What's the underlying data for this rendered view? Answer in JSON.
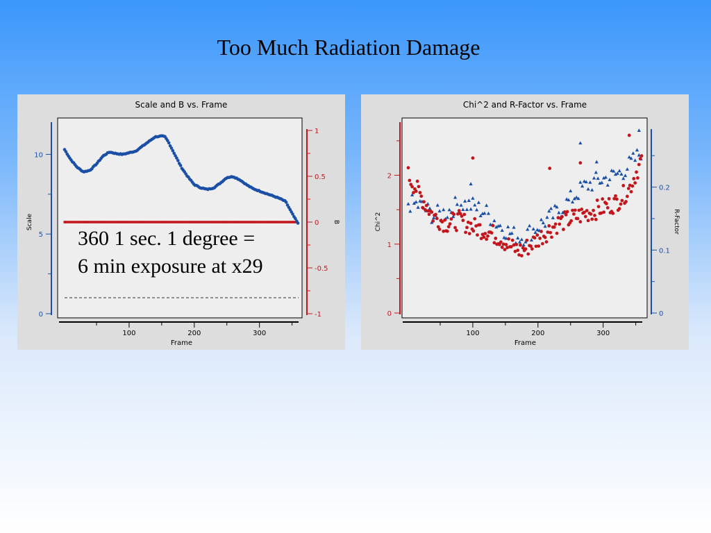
{
  "slide": {
    "title": "Too Much Radiation Damage"
  },
  "left_panel": {
    "note_line1": "360 1 sec. 1 degree =",
    "note_line2": "6 min exposure at x29"
  },
  "colors": {
    "blue": "#1a4fa6",
    "red": "#c3161c",
    "axis_blue": "#1a4fa6",
    "axis_red": "#c3161c",
    "panel_bg": "#dddddd",
    "plot_bg": "#eeeeee"
  },
  "chart_data": [
    {
      "type": "line",
      "title": "Scale and B vs. Frame",
      "xlabel": "Frame",
      "ylabel_left": "Scale",
      "ylabel_right": "B",
      "xlim": [
        1,
        360
      ],
      "ylim_left": [
        0,
        11.5
      ],
      "ylim_right": [
        -1,
        1
      ],
      "x_ticks": [
        100,
        200,
        300
      ],
      "y_ticks_left": [
        0,
        5,
        10
      ],
      "y_ticks_right": [
        -1,
        -0.5,
        0,
        0.5,
        1
      ],
      "y_tick_labels_right": [
        "-1",
        "-0.5",
        "0",
        "0.5",
        "1"
      ],
      "series": [
        {
          "name": "Scale",
          "axis": "left",
          "color": "#1a4fa6",
          "points": [
            [
              1,
              10.3
            ],
            [
              10,
              9.7
            ],
            [
              20,
              9.2
            ],
            [
              30,
              8.9
            ],
            [
              40,
              9.0
            ],
            [
              50,
              9.4
            ],
            [
              60,
              9.9
            ],
            [
              70,
              10.15
            ],
            [
              80,
              10.05
            ],
            [
              90,
              10.0
            ],
            [
              100,
              10.1
            ],
            [
              110,
              10.2
            ],
            [
              120,
              10.5
            ],
            [
              130,
              10.8
            ],
            [
              140,
              11.1
            ],
            [
              150,
              11.15
            ],
            [
              155,
              11.1
            ],
            [
              160,
              10.8
            ],
            [
              170,
              10.0
            ],
            [
              180,
              9.2
            ],
            [
              190,
              8.6
            ],
            [
              200,
              8.1
            ],
            [
              210,
              7.9
            ],
            [
              220,
              7.8
            ],
            [
              230,
              7.9
            ],
            [
              240,
              8.2
            ],
            [
              250,
              8.55
            ],
            [
              260,
              8.6
            ],
            [
              270,
              8.4
            ],
            [
              280,
              8.1
            ],
            [
              290,
              7.85
            ],
            [
              300,
              7.7
            ],
            [
              310,
              7.55
            ],
            [
              320,
              7.4
            ],
            [
              330,
              7.25
            ],
            [
              340,
              7.05
            ],
            [
              350,
              6.3
            ],
            [
              360,
              5.6
            ]
          ]
        },
        {
          "name": "B",
          "axis": "right",
          "color": "#c3161c",
          "constant": 0
        }
      ],
      "reference_line": 1.0
    },
    {
      "type": "scatter",
      "title": "Chi^2 and R-Factor vs. Frame",
      "xlabel": "Frame",
      "ylabel_left": "Chi^2",
      "ylabel_right": "R-Factor",
      "xlim": [
        1,
        360
      ],
      "ylim_left": [
        0,
        2.65
      ],
      "ylim_right": [
        0,
        0.29
      ],
      "x_ticks": [
        100,
        200,
        300
      ],
      "y_ticks_left": [
        0,
        1,
        2
      ],
      "y_ticks_right": [
        0,
        0.1,
        0.2
      ],
      "y_tick_labels_right": [
        "0",
        "0.1",
        "0.2"
      ],
      "series": [
        {
          "name": "Chi^2",
          "axis": "left",
          "marker": "circle",
          "color": "#c3161c",
          "trend": [
            [
              1,
              2.0
            ],
            [
              20,
              1.7
            ],
            [
              40,
              1.4
            ],
            [
              60,
              1.3
            ],
            [
              80,
              1.35
            ],
            [
              100,
              1.25
            ],
            [
              120,
              1.2
            ],
            [
              140,
              1.1
            ],
            [
              160,
              0.95
            ],
            [
              175,
              0.9
            ],
            [
              190,
              1.0
            ],
            [
              210,
              1.15
            ],
            [
              230,
              1.3
            ],
            [
              260,
              1.4
            ],
            [
              290,
              1.5
            ],
            [
              320,
              1.6
            ],
            [
              340,
              1.8
            ],
            [
              360,
              2.25
            ]
          ],
          "outliers": [
            [
              100,
              2.25
            ],
            [
              218,
              2.1
            ],
            [
              265,
              2.18
            ],
            [
              340,
              2.58
            ]
          ]
        },
        {
          "name": "R-Factor",
          "axis": "right",
          "marker": "triangle",
          "color": "#1a4fa6",
          "trend": [
            [
              1,
              0.175
            ],
            [
              20,
              0.17
            ],
            [
              40,
              0.155
            ],
            [
              60,
              0.16
            ],
            [
              80,
              0.175
            ],
            [
              100,
              0.17
            ],
            [
              120,
              0.16
            ],
            [
              140,
              0.14
            ],
            [
              160,
              0.125
            ],
            [
              175,
              0.12
            ],
            [
              190,
              0.13
            ],
            [
              210,
              0.145
            ],
            [
              230,
              0.16
            ],
            [
              250,
              0.18
            ],
            [
              270,
              0.2
            ],
            [
              290,
              0.21
            ],
            [
              310,
              0.215
            ],
            [
              330,
              0.225
            ],
            [
              350,
              0.245
            ],
            [
              360,
              0.26
            ]
          ],
          "outliers": [
            [
              97,
              0.205
            ],
            [
              265,
              0.27
            ],
            [
              290,
              0.24
            ],
            [
              355,
              0.29
            ]
          ]
        }
      ]
    }
  ]
}
